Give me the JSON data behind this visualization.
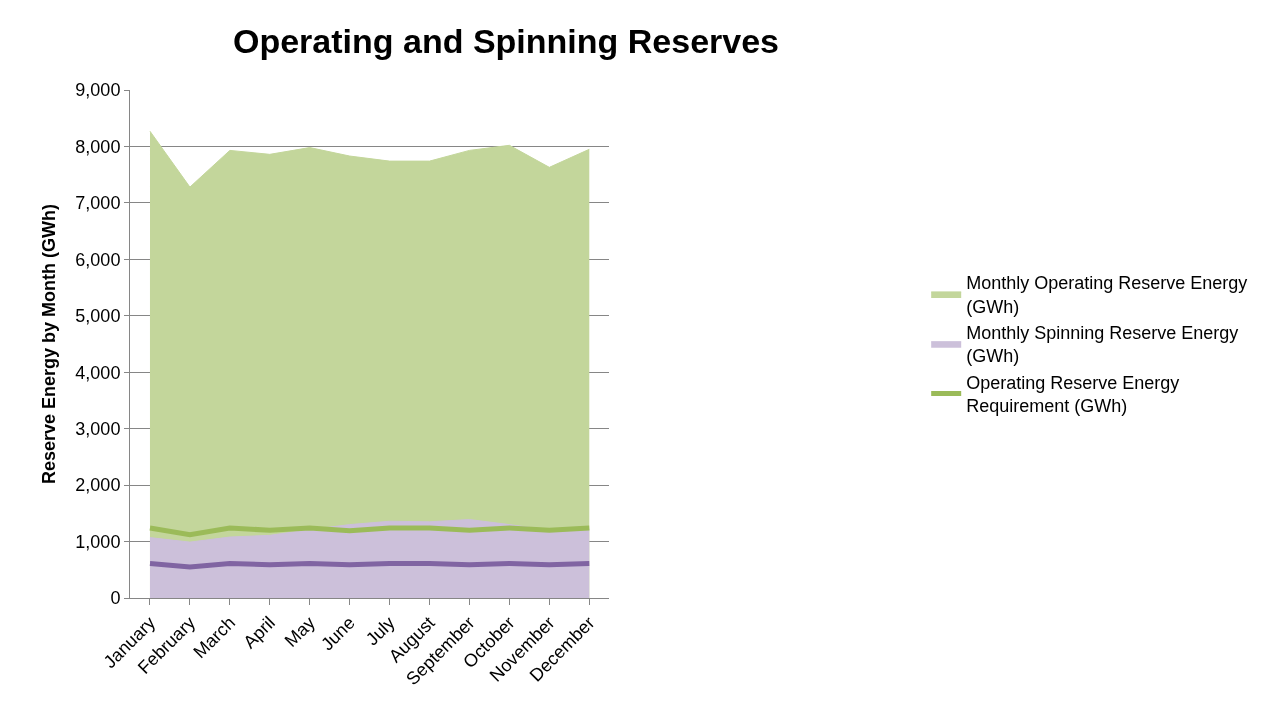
{
  "chart_data": {
    "type": "area",
    "title": "Operating and Spinning Reserves",
    "ylabel": "Reserve Energy by Month (GWh)",
    "categories": [
      "January",
      "February",
      "March",
      "April",
      "May",
      "June",
      "July",
      "August",
      "September",
      "October",
      "November",
      "December"
    ],
    "series": [
      {
        "name": "Monthly Operating Reserve Energy (GWh)",
        "color": "#c3d69b",
        "values": [
          8270,
          7280,
          7930,
          7860,
          7980,
          7830,
          7740,
          7740,
          7930,
          8020,
          7630,
          7950
        ]
      },
      {
        "name": "Monthly Spinning Reserve Energy (GWh)",
        "color": "#ccc0da",
        "values": [
          1070,
          990,
          1080,
          1110,
          1210,
          1300,
          1360,
          1350,
          1390,
          1300,
          1200,
          1220
        ]
      },
      {
        "name": "Operating Reserve Energy Requirement (GWh)",
        "color": "#9bbb59",
        "type": "line",
        "values": [
          1240,
          1120,
          1240,
          1200,
          1240,
          1190,
          1240,
          1240,
          1200,
          1240,
          1200,
          1240
        ]
      },
      {
        "color": "#8064a2",
        "type": "line",
        "values": [
          610,
          550,
          610,
          590,
          610,
          590,
          610,
          610,
          590,
          610,
          590,
          610
        ]
      }
    ],
    "ylim": [
      0,
      9000
    ],
    "yticks": [
      {
        "value": 0,
        "label": "0"
      },
      {
        "value": 1000,
        "label": "1,000"
      },
      {
        "value": 2000,
        "label": "2,000"
      },
      {
        "value": 3000,
        "label": "3,000"
      },
      {
        "value": 4000,
        "label": "4,000"
      },
      {
        "value": 5000,
        "label": "5,000"
      },
      {
        "value": 6000,
        "label": "6,000"
      },
      {
        "value": 7000,
        "label": "7,000"
      },
      {
        "value": 8000,
        "label": "8,000"
      },
      {
        "value": 9000,
        "label": "9,000"
      }
    ],
    "grid": "y",
    "legend": "right"
  }
}
